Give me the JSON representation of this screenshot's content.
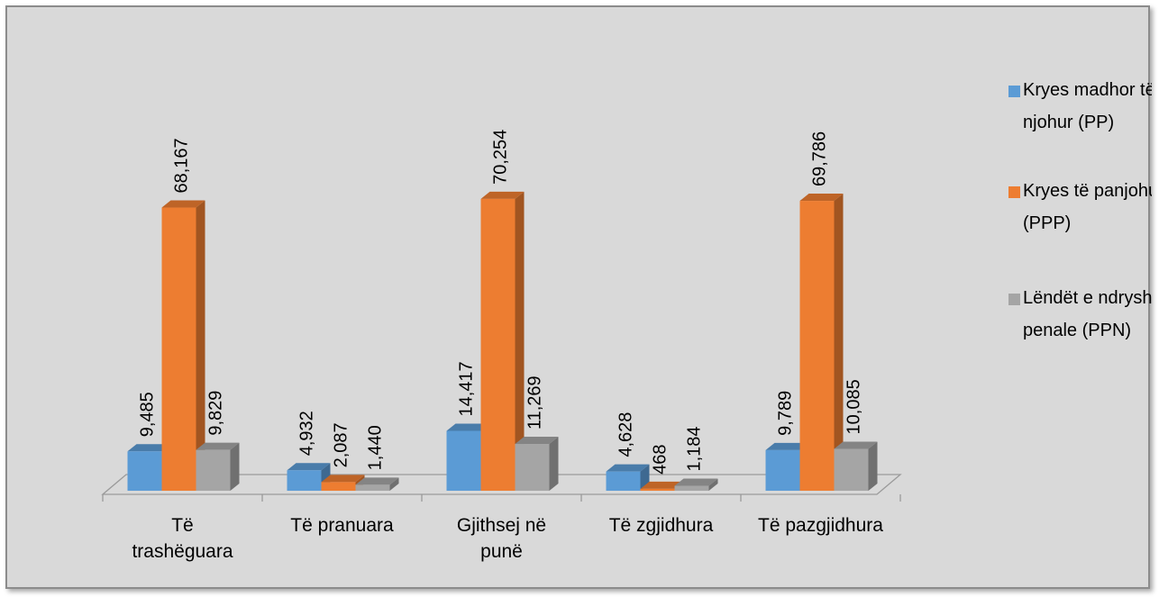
{
  "chart_data": {
    "type": "bar",
    "title": "",
    "xlabel": "",
    "ylabel": "",
    "categories": [
      [
        "Të",
        "trashëguara"
      ],
      [
        "Të pranuara"
      ],
      [
        "Gjithsej në",
        "punë"
      ],
      [
        "Të zgjidhura"
      ],
      [
        "Të pazgjidhura"
      ]
    ],
    "series": [
      {
        "name_lines": [
          "Kryes madhor të",
          "njohur (PP)"
        ],
        "values": [
          9485,
          4932,
          14417,
          4628,
          9789
        ],
        "labels": [
          "9,485",
          "4,932",
          "14,417",
          "4,628",
          "9,789"
        ],
        "color": "#5b9bd5"
      },
      {
        "name_lines": [
          "Kryes të panjohur",
          "(PPP)"
        ],
        "values": [
          68167,
          2087,
          70254,
          468,
          69786
        ],
        "labels": [
          "68,167",
          "2,087",
          "70,254",
          "468",
          "69,786"
        ],
        "color": "#ed7d31"
      },
      {
        "name_lines": [
          "Lëndët e ndryshme",
          "penale (PPN)"
        ],
        "values": [
          9829,
          1440,
          11269,
          1184,
          10085
        ],
        "labels": [
          "9,829",
          "1,440",
          "11,269",
          "1,184",
          "10,085"
        ],
        "color": "#a5a5a5"
      }
    ],
    "ylim": [
      0,
      75000
    ],
    "grid": false,
    "legend_position": "right",
    "style": "3d-clustered-column"
  }
}
